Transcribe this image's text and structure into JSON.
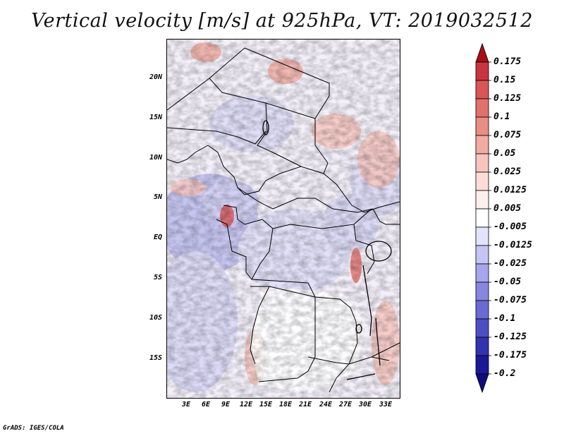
{
  "title": "Vertical velocity [m/s] at 925hPa, VT: 2019032512",
  "credit": "GrADS: IGES/COLA",
  "map": {
    "region": "Central Africa",
    "lat_ticks": [
      "20N",
      "15N",
      "10N",
      "5N",
      "EQ",
      "5S",
      "10S",
      "15S"
    ],
    "lon_ticks": [
      "3E",
      "6E",
      "9E",
      "12E",
      "15E",
      "18E",
      "21E",
      "24E",
      "27E",
      "30E",
      "33E"
    ]
  },
  "colorbar": {
    "labels": [
      "0.175",
      "0.15",
      "0.125",
      "0.1",
      "0.075",
      "0.05",
      "0.025",
      "0.0125",
      "0.005",
      "-0.005",
      "-0.0125",
      "-0.025",
      "-0.05",
      "-0.075",
      "-0.1",
      "-0.125",
      "-0.175",
      "-0.2"
    ],
    "colors": [
      "#b2182b",
      "#c8353f",
      "#d95556",
      "#e2716c",
      "#ea8d85",
      "#f2aba1",
      "#f7c5bd",
      "#fbdcd6",
      "#fdefec",
      "#ffffff",
      "#e3e3fb",
      "#c5c5f4",
      "#a6a6ec",
      "#8787e0",
      "#6a6ad4",
      "#4d4dc4",
      "#3333b0",
      "#1a1a96"
    ],
    "top_arrow_color": "#a50f15",
    "bottom_arrow_color": "#0d0d80"
  }
}
